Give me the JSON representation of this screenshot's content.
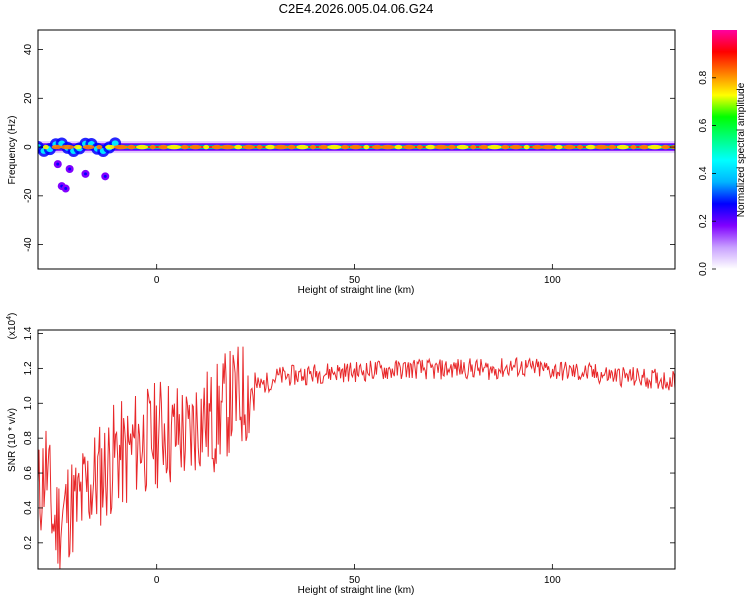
{
  "title": "C2E4.2026.005.04.06.G24",
  "colors": {
    "snr_line": "#e8282a",
    "spectrogram_ridge": "#e8282a",
    "colorbar_stops": [
      "#ffffff",
      "#c8a0ff",
      "#8000ff",
      "#0000ff",
      "#00b4ff",
      "#00ffff",
      "#00ff80",
      "#00ff00",
      "#ffff00",
      "#ff8000",
      "#ff0000",
      "#ff00a0"
    ]
  },
  "chart_data": [
    {
      "type": "heatmap",
      "xlabel": "Height of straight line (km)",
      "ylabel": "Frequency (Hz)",
      "xlim": [
        -30,
        131
      ],
      "ylim": [
        -50,
        48
      ],
      "xticks": [
        0,
        50,
        100
      ],
      "yticks": [
        40,
        20,
        0,
        -20,
        -40
      ],
      "grid": false,
      "colorbar": {
        "label": "Normalized spectral amplitude",
        "range": [
          0,
          1
        ],
        "ticks": [
          "0.0",
          "0.2",
          "0.4",
          "0.6",
          "0.8"
        ]
      },
      "ridge": {
        "frequency_hz": 0,
        "x_start": -30,
        "x_end": 131,
        "scatter_points": [
          {
            "x": -25,
            "y": -7
          },
          {
            "x": -22,
            "y": -9
          },
          {
            "x": -18,
            "y": -11
          },
          {
            "x": -13,
            "y": -12
          },
          {
            "x": -24,
            "y": -16
          },
          {
            "x": -23,
            "y": -17
          }
        ]
      }
    },
    {
      "type": "line",
      "xlabel": "Height of straight line (km)",
      "ylabel": "SNR (10 * v/v)",
      "y_multiplier_label": "(x10",
      "y_multiplier_exp": "4",
      "xlim": [
        -30,
        131
      ],
      "ylim": [
        0.05,
        1.42
      ],
      "xticks": [
        0,
        50,
        100
      ],
      "yticks": [
        "0.2",
        "0.4",
        "0.6",
        "0.8",
        "1.0",
        "1.2",
        "1.4"
      ],
      "grid": false,
      "series": [
        {
          "x": [
            -30,
            -28,
            -26,
            -24,
            -22,
            -20,
            -18,
            -16,
            -14,
            -12,
            -10,
            -8,
            -6,
            -4,
            -2,
            0,
            2,
            4,
            6,
            8,
            10,
            12,
            14,
            16,
            18,
            20,
            22,
            24,
            26,
            28,
            30,
            35,
            40,
            45,
            50,
            55,
            60,
            65,
            70,
            75,
            80,
            85,
            90,
            95,
            100,
            105,
            110,
            115,
            120,
            125,
            131
          ],
          "values": [
            0.45,
            0.65,
            0.3,
            0.35,
            0.42,
            0.4,
            0.5,
            0.55,
            0.6,
            0.65,
            0.72,
            0.68,
            0.75,
            0.8,
            0.78,
            0.82,
            0.88,
            0.8,
            0.85,
            0.78,
            0.9,
            0.92,
            0.88,
            0.95,
            1.0,
            1.02,
            1.05,
            1.08,
            1.1,
            1.12,
            1.15,
            1.16,
            1.17,
            1.18,
            1.18,
            1.19,
            1.19,
            1.2,
            1.19,
            1.2,
            1.2,
            1.19,
            1.21,
            1.2,
            1.19,
            1.18,
            1.17,
            1.16,
            1.15,
            1.14,
            1.13
          ]
        }
      ]
    }
  ]
}
